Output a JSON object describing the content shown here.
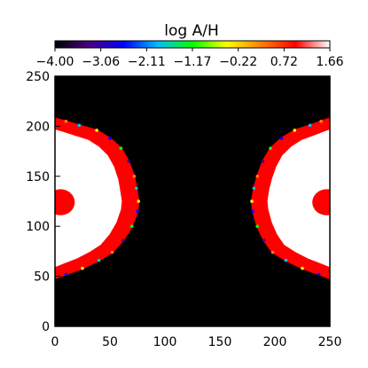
{
  "chart_data": {
    "type": "heatmap",
    "title": "log A/H",
    "xlabel": "",
    "ylabel": "",
    "xlim": [
      0,
      250
    ],
    "ylim": [
      0,
      250
    ],
    "xticks": [
      "0",
      "50",
      "100",
      "150",
      "200",
      "250"
    ],
    "yticks": [
      "0",
      "50",
      "100",
      "150",
      "200",
      "250"
    ],
    "colorbar": {
      "position": "top",
      "range": [
        -4.0,
        1.66
      ],
      "tick_labels": [
        "−4.00",
        "−3.06",
        "−2.11",
        "−1.17",
        "−0.22",
        "0.72",
        "1.66"
      ],
      "colormap": [
        "#000000",
        "#4b0082",
        "#0000ff",
        "#00bfff",
        "#00ff00",
        "#ffff00",
        "#ff8000",
        "#ff0000",
        "#ffffff"
      ]
    },
    "background_value": "black (lowest)",
    "regions": [
      {
        "name": "left lobe",
        "core": "white (highest)",
        "rim": "red",
        "y_extent": [
          48,
          208
        ],
        "x_extent": [
          0,
          75
        ],
        "boundary": [
          [
            0,
            48
          ],
          [
            10,
            52
          ],
          [
            25,
            58
          ],
          [
            40,
            66
          ],
          [
            52,
            74
          ],
          [
            62,
            86
          ],
          [
            70,
            100
          ],
          [
            75,
            115
          ],
          [
            76,
            125
          ],
          [
            74,
            138
          ],
          [
            72,
            150
          ],
          [
            67,
            165
          ],
          [
            60,
            178
          ],
          [
            50,
            188
          ],
          [
            38,
            196
          ],
          [
            22,
            201
          ],
          [
            10,
            205
          ],
          [
            0,
            208
          ]
        ]
      },
      {
        "name": "right lobe",
        "core": "white (highest)",
        "rim": "red",
        "y_extent": [
          48,
          208
        ],
        "x_extent": [
          178,
          250
        ],
        "boundary": [
          [
            250,
            48
          ],
          [
            240,
            52
          ],
          [
            225,
            58
          ],
          [
            210,
            66
          ],
          [
            198,
            74
          ],
          [
            190,
            86
          ],
          [
            184,
            100
          ],
          [
            180,
            115
          ],
          [
            179,
            125
          ],
          [
            181,
            138
          ],
          [
            184,
            150
          ],
          [
            189,
            165
          ],
          [
            196,
            178
          ],
          [
            206,
            188
          ],
          [
            218,
            196
          ],
          [
            232,
            201
          ],
          [
            242,
            205
          ],
          [
            250,
            208
          ]
        ]
      },
      {
        "name": "left red core",
        "center": [
          5,
          124
        ],
        "radius": 13
      },
      {
        "name": "right red core",
        "center": [
          247,
          124
        ],
        "radius": 13
      }
    ]
  }
}
